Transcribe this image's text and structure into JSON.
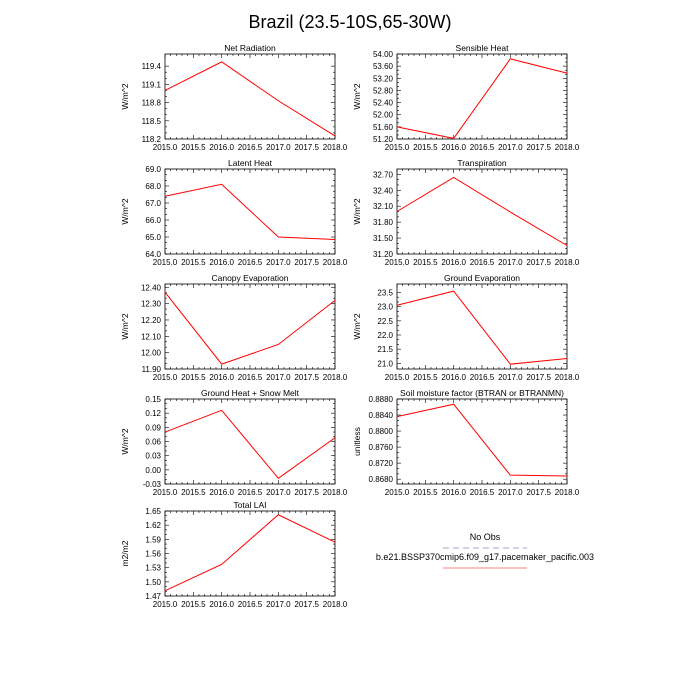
{
  "title": "Brazil (23.5-10S,65-30W)",
  "chart_data": [
    {
      "type": "line",
      "title": "Net Radiation",
      "ylabel": "W/m^2",
      "x": [
        2015.0,
        2016.0,
        2017.0,
        2018.0
      ],
      "values": [
        119.0,
        119.47,
        118.83,
        118.25
      ],
      "xlim": [
        2015.0,
        2018.0
      ],
      "xticks": [
        "2015.0",
        "2015.5",
        "2016.0",
        "2016.5",
        "2017.0",
        "2017.5",
        "2018.0"
      ],
      "ylim": [
        118.2,
        119.6
      ],
      "yticks": [
        "118.2",
        "118.5",
        "118.8",
        "119.1",
        "119.4"
      ]
    },
    {
      "type": "line",
      "title": "Sensible Heat",
      "ylabel": "W/m^2",
      "x": [
        2015.0,
        2016.0,
        2017.0,
        2018.0
      ],
      "values": [
        51.6,
        51.22,
        53.84,
        53.37
      ],
      "xlim": [
        2015.0,
        2018.0
      ],
      "xticks": [
        "2015.0",
        "2015.5",
        "2016.0",
        "2016.5",
        "2017.0",
        "2017.5",
        "2018.0"
      ],
      "ylim": [
        51.2,
        54.0
      ],
      "yticks": [
        "51.20",
        "51.60",
        "52.00",
        "52.40",
        "52.80",
        "53.20",
        "53.60",
        "54.00"
      ]
    },
    {
      "type": "line",
      "title": "Latent Heat",
      "ylabel": "W/m^2",
      "x": [
        2015.0,
        2016.0,
        2017.0,
        2018.0
      ],
      "values": [
        67.4,
        68.1,
        65.0,
        64.85
      ],
      "xlim": [
        2015.0,
        2018.0
      ],
      "xticks": [
        "2015.0",
        "2015.5",
        "2016.0",
        "2016.5",
        "2017.0",
        "2017.5",
        "2018.0"
      ],
      "ylim": [
        64.0,
        69.0
      ],
      "yticks": [
        "64.0",
        "65.0",
        "66.0",
        "67.0",
        "68.0",
        "69.0"
      ]
    },
    {
      "type": "line",
      "title": "Transpiration",
      "ylabel": "W/m^2",
      "x": [
        2015.0,
        2016.0,
        2017.0,
        2018.0
      ],
      "values": [
        32.0,
        32.64,
        31.99,
        31.36
      ],
      "xlim": [
        2015.0,
        2018.0
      ],
      "xticks": [
        "2015.0",
        "2015.5",
        "2016.0",
        "2016.5",
        "2017.0",
        "2017.5",
        "2018.0"
      ],
      "ylim": [
        31.2,
        32.8
      ],
      "yticks": [
        "31.20",
        "31.50",
        "31.80",
        "32.10",
        "32.40",
        "32.70"
      ]
    },
    {
      "type": "line",
      "title": "Canopy Evaporation",
      "ylabel": "W/m^2",
      "x": [
        2015.0,
        2016.0,
        2017.0,
        2018.0
      ],
      "values": [
        12.37,
        11.93,
        12.05,
        12.32
      ],
      "xlim": [
        2015.0,
        2018.0
      ],
      "xticks": [
        "2015.0",
        "2015.5",
        "2016.0",
        "2016.5",
        "2017.0",
        "2017.5",
        "2018.0"
      ],
      "ylim": [
        11.9,
        12.42
      ],
      "yticks": [
        "11.90",
        "12.00",
        "12.10",
        "12.20",
        "12.30",
        "12.40"
      ]
    },
    {
      "type": "line",
      "title": "Ground Evaporation",
      "ylabel": "W/m^2",
      "x": [
        2015.0,
        2016.0,
        2017.0,
        2018.0
      ],
      "values": [
        23.05,
        23.55,
        20.97,
        21.17
      ],
      "xlim": [
        2015.0,
        2018.0
      ],
      "xticks": [
        "2015.0",
        "2015.5",
        "2016.0",
        "2016.5",
        "2017.0",
        "2017.5",
        "2018.0"
      ],
      "ylim": [
        20.8,
        23.8
      ],
      "yticks": [
        "21.0",
        "21.5",
        "22.0",
        "22.5",
        "23.0",
        "23.5"
      ]
    },
    {
      "type": "line",
      "title": "Ground Heat + Snow Melt",
      "ylabel": "W/m^2",
      "x": [
        2015.0,
        2016.0,
        2017.0,
        2018.0
      ],
      "values": [
        0.08,
        0.126,
        -0.018,
        0.068
      ],
      "xlim": [
        2015.0,
        2018.0
      ],
      "xticks": [
        "2015.0",
        "2015.5",
        "2016.0",
        "2016.5",
        "2017.0",
        "2017.5",
        "2018.0"
      ],
      "ylim": [
        -0.03,
        0.15
      ],
      "yticks": [
        "-0.03",
        "0.00",
        "0.03",
        "0.06",
        "0.09",
        "0.12",
        "0.15"
      ]
    },
    {
      "type": "line",
      "title": "Soil moisture factor (BTRAN or BTRANMN)",
      "ylabel": "unitless",
      "x": [
        2015.0,
        2016.0,
        2017.0,
        2018.0
      ],
      "values": [
        0.8836,
        0.8867,
        0.869,
        0.8688
      ],
      "xlim": [
        2015.0,
        2018.0
      ],
      "xticks": [
        "2015.0",
        "2015.5",
        "2016.0",
        "2016.5",
        "2017.0",
        "2017.5",
        "2018.0"
      ],
      "ylim": [
        0.8668,
        0.888
      ],
      "yticks": [
        "0.8680",
        "0.8720",
        "0.8760",
        "0.8800",
        "0.8840",
        "0.8880"
      ]
    },
    {
      "type": "line",
      "title": "Total LAI",
      "ylabel": "m2/m2",
      "x": [
        2015.0,
        2016.0,
        2017.0,
        2018.0
      ],
      "values": [
        1.481,
        1.537,
        1.642,
        1.584
      ],
      "xlim": [
        2015.0,
        2018.0
      ],
      "xticks": [
        "2015.0",
        "2015.5",
        "2016.0",
        "2016.5",
        "2017.0",
        "2017.5",
        "2018.0"
      ],
      "ylim": [
        1.47,
        1.65
      ],
      "yticks": [
        "1.47",
        "1.50",
        "1.53",
        "1.56",
        "1.59",
        "1.62",
        "1.65"
      ]
    }
  ],
  "legend": {
    "entries": [
      {
        "label": "No Obs",
        "color": "#b8b8d8",
        "dashed": true
      },
      {
        "label": "b.e21.BSSP370cmip6.f09_g17.pacemaker_pacific.003",
        "color": "#ff9999",
        "dashed": false
      }
    ]
  }
}
